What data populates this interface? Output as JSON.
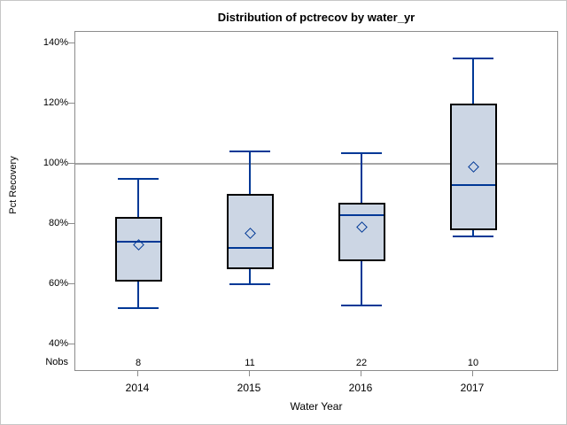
{
  "title": "Distribution of pctrecov by water_yr",
  "chart_data": {
    "type": "box",
    "title": "Distribution of pctrecov by water_yr",
    "xlabel": "Water Year",
    "ylabel": "Pct Recovery",
    "nobs_row_label": "Nobs",
    "categories": [
      "2014",
      "2015",
      "2016",
      "2017"
    ],
    "nobs": [
      "8",
      "11",
      "22",
      "10"
    ],
    "yticks": [
      {
        "value": 140,
        "label": "140%"
      },
      {
        "value": 120,
        "label": "120%"
      },
      {
        "value": 100,
        "label": "100%"
      },
      {
        "value": 80,
        "label": "80%"
      },
      {
        "value": 60,
        "label": "60%"
      },
      {
        "value": 40,
        "label": "40%"
      }
    ],
    "ylim": [
      40,
      140
    ],
    "reference_line": 100,
    "grid": false,
    "legend": "none",
    "series": [
      {
        "category": "2014",
        "whisker_low": 52,
        "q1": 61,
        "median": 74,
        "mean": 73,
        "q3": 82.5,
        "whisker_high": 95,
        "nobs": 8
      },
      {
        "category": "2015",
        "whisker_low": 60,
        "q1": 65,
        "median": 72,
        "mean": 77,
        "q3": 90,
        "whisker_high": 104,
        "nobs": 11
      },
      {
        "category": "2016",
        "whisker_low": 53,
        "q1": 67.5,
        "median": 83,
        "mean": 79,
        "q3": 87,
        "whisker_high": 103.5,
        "nobs": 22
      },
      {
        "category": "2017",
        "whisker_low": 76,
        "q1": 78,
        "median": 93,
        "mean": 99,
        "q3": 120,
        "whisker_high": 135,
        "nobs": 10
      }
    ],
    "colors": {
      "box_fill": "#ccd6e4",
      "box_border": "#000000",
      "line": "#003896",
      "reference_line": "#a6a6a6",
      "frame": "#8c8c8c"
    }
  }
}
